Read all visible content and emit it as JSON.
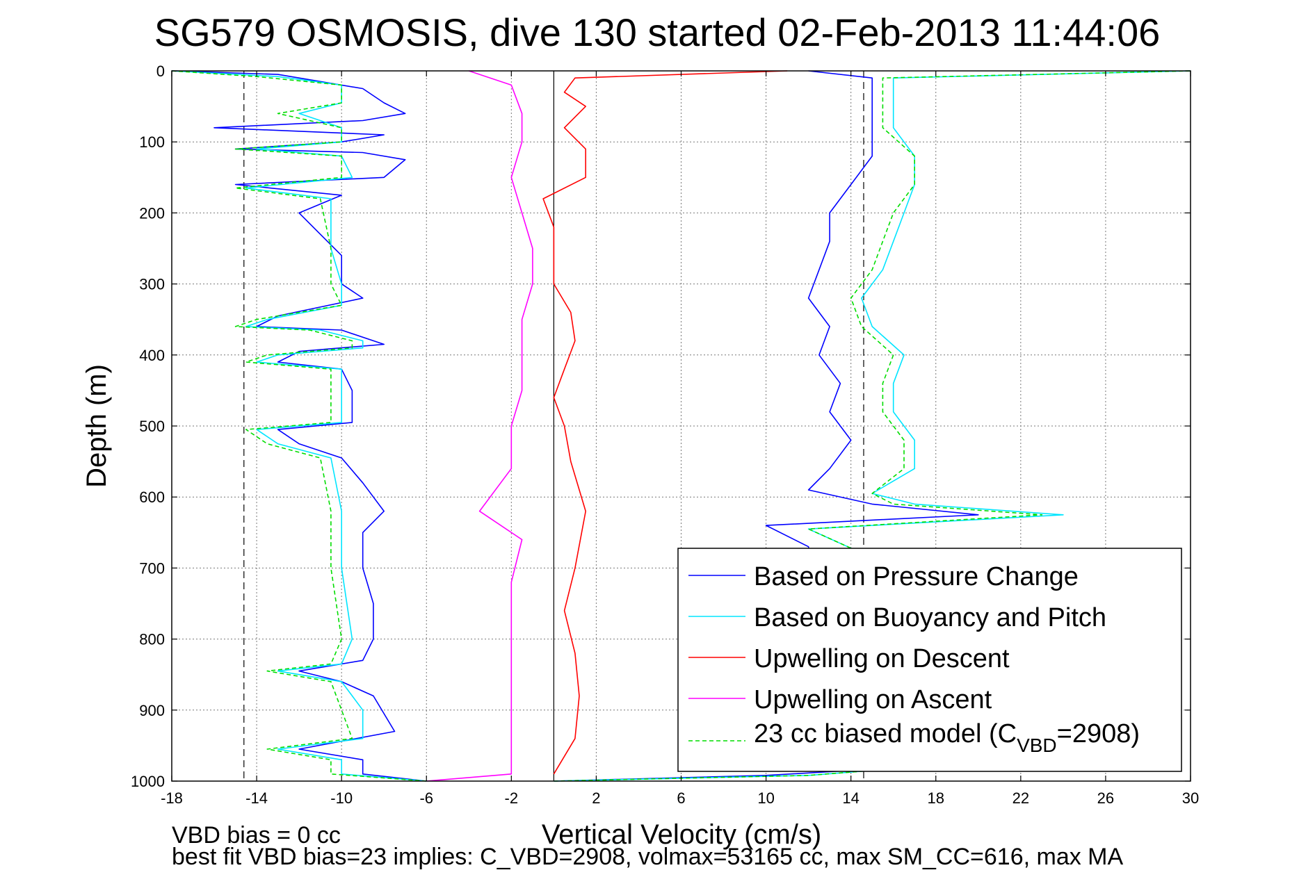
{
  "chart_data": {
    "type": "line",
    "title": "SG579 OSMOSIS, dive 130 started 02-Feb-2013 11:44:06",
    "xlabel": "Vertical Velocity (cm/s)",
    "ylabel": "Depth (m)",
    "xlim": [
      -18,
      30
    ],
    "ylim": [
      0,
      1000
    ],
    "y_reversed": true,
    "grid": true,
    "x_ticks": [
      "-18",
      "-14",
      "-10",
      "-6",
      "-2",
      "2",
      "6",
      "10",
      "14",
      "18",
      "22",
      "26",
      "30"
    ],
    "y_ticks": [
      "0",
      "100",
      "200",
      "300",
      "400",
      "500",
      "600",
      "700",
      "800",
      "900",
      "1000"
    ],
    "legend_position": "bottom-right",
    "legend": {
      "entries": [
        {
          "name": "Based on Pressure Change",
          "color": "#0000ff",
          "style": "solid"
        },
        {
          "name": "Based on Buoyancy and Pitch",
          "color": "#00e5ff",
          "style": "solid"
        },
        {
          "name": "Upwelling on Descent",
          "color": "#ff0000",
          "style": "solid"
        },
        {
          "name": "Upwelling on Ascent",
          "color": "#ff00ff",
          "style": "solid"
        },
        {
          "name_prefix": "23 cc biased model (C",
          "name_sub": "VBD",
          "name_suffix": "=2908)",
          "color": "#00dd00",
          "style": "dashed"
        }
      ]
    },
    "reference_lines": {
      "descent_dashed_x": -14.6,
      "ascent_dashed_x": 14.6,
      "zero_solid_x": 0
    },
    "series": [
      {
        "name": "Based on Pressure Change (descent)",
        "color": "#0000ff",
        "points": [
          {
            "x": -18,
            "y": 0
          },
          {
            "x": -13,
            "y": 5
          },
          {
            "x": -11,
            "y": 15
          },
          {
            "x": -9,
            "y": 25
          },
          {
            "x": -8,
            "y": 45
          },
          {
            "x": -7,
            "y": 60
          },
          {
            "x": -9,
            "y": 70
          },
          {
            "x": -16,
            "y": 80
          },
          {
            "x": -8,
            "y": 90
          },
          {
            "x": -10,
            "y": 100
          },
          {
            "x": -15,
            "y": 110
          },
          {
            "x": -9,
            "y": 115
          },
          {
            "x": -7,
            "y": 125
          },
          {
            "x": -8,
            "y": 150
          },
          {
            "x": -15,
            "y": 160
          },
          {
            "x": -10,
            "y": 175
          },
          {
            "x": -12,
            "y": 200
          },
          {
            "x": -11,
            "y": 230
          },
          {
            "x": -10,
            "y": 260
          },
          {
            "x": -10,
            "y": 300
          },
          {
            "x": -9,
            "y": 320
          },
          {
            "x": -13,
            "y": 345
          },
          {
            "x": -14,
            "y": 360
          },
          {
            "x": -10,
            "y": 365
          },
          {
            "x": -8,
            "y": 385
          },
          {
            "x": -12,
            "y": 395
          },
          {
            "x": -13,
            "y": 410
          },
          {
            "x": -10,
            "y": 420
          },
          {
            "x": -9.5,
            "y": 450
          },
          {
            "x": -9.5,
            "y": 495
          },
          {
            "x": -13,
            "y": 505
          },
          {
            "x": -12,
            "y": 525
          },
          {
            "x": -10,
            "y": 545
          },
          {
            "x": -9,
            "y": 580
          },
          {
            "x": -8,
            "y": 620
          },
          {
            "x": -9,
            "y": 650
          },
          {
            "x": -9,
            "y": 700
          },
          {
            "x": -8.5,
            "y": 750
          },
          {
            "x": -8.5,
            "y": 800
          },
          {
            "x": -9,
            "y": 830
          },
          {
            "x": -12,
            "y": 845
          },
          {
            "x": -10,
            "y": 860
          },
          {
            "x": -8.5,
            "y": 880
          },
          {
            "x": -7.5,
            "y": 930
          },
          {
            "x": -12,
            "y": 955
          },
          {
            "x": -9,
            "y": 970
          },
          {
            "x": -9,
            "y": 990
          },
          {
            "x": -6,
            "y": 1000
          }
        ]
      },
      {
        "name": "Based on Buoyancy and Pitch (descent)",
        "color": "#00e5ff",
        "points": [
          {
            "x": -18,
            "y": 0
          },
          {
            "x": -13,
            "y": 8
          },
          {
            "x": -10,
            "y": 20
          },
          {
            "x": -10,
            "y": 45
          },
          {
            "x": -12,
            "y": 60
          },
          {
            "x": -10,
            "y": 80
          },
          {
            "x": -10,
            "y": 100
          },
          {
            "x": -14,
            "y": 110
          },
          {
            "x": -10,
            "y": 120
          },
          {
            "x": -9.5,
            "y": 150
          },
          {
            "x": -14.5,
            "y": 165
          },
          {
            "x": -10.5,
            "y": 180
          },
          {
            "x": -10.5,
            "y": 250
          },
          {
            "x": -10,
            "y": 300
          },
          {
            "x": -10,
            "y": 330
          },
          {
            "x": -13.5,
            "y": 350
          },
          {
            "x": -14.5,
            "y": 360
          },
          {
            "x": -11,
            "y": 365
          },
          {
            "x": -9,
            "y": 380
          },
          {
            "x": -9,
            "y": 390
          },
          {
            "x": -13,
            "y": 400
          },
          {
            "x": -14,
            "y": 410
          },
          {
            "x": -10,
            "y": 420
          },
          {
            "x": -10,
            "y": 495
          },
          {
            "x": -14,
            "y": 505
          },
          {
            "x": -13,
            "y": 525
          },
          {
            "x": -10.5,
            "y": 545
          },
          {
            "x": -10,
            "y": 620
          },
          {
            "x": -10,
            "y": 700
          },
          {
            "x": -9.5,
            "y": 800
          },
          {
            "x": -10,
            "y": 835
          },
          {
            "x": -13,
            "y": 845
          },
          {
            "x": -10,
            "y": 860
          },
          {
            "x": -9,
            "y": 900
          },
          {
            "x": -9,
            "y": 940
          },
          {
            "x": -13,
            "y": 955
          },
          {
            "x": -10,
            "y": 970
          },
          {
            "x": -10,
            "y": 990
          },
          {
            "x": -6,
            "y": 1000
          }
        ]
      },
      {
        "name": "23 cc biased model (descent)",
        "color": "#00dd00",
        "dashed": true,
        "points": [
          {
            "x": -18,
            "y": 0
          },
          {
            "x": -14,
            "y": 8
          },
          {
            "x": -10,
            "y": 20
          },
          {
            "x": -10,
            "y": 45
          },
          {
            "x": -13,
            "y": 60
          },
          {
            "x": -10,
            "y": 80
          },
          {
            "x": -10,
            "y": 100
          },
          {
            "x": -15,
            "y": 110
          },
          {
            "x": -10,
            "y": 120
          },
          {
            "x": -10,
            "y": 150
          },
          {
            "x": -15,
            "y": 165
          },
          {
            "x": -11,
            "y": 180
          },
          {
            "x": -10.5,
            "y": 250
          },
          {
            "x": -10.5,
            "y": 300
          },
          {
            "x": -10,
            "y": 330
          },
          {
            "x": -14,
            "y": 350
          },
          {
            "x": -15,
            "y": 360
          },
          {
            "x": -11.5,
            "y": 365
          },
          {
            "x": -9.5,
            "y": 380
          },
          {
            "x": -9.5,
            "y": 390
          },
          {
            "x": -13.5,
            "y": 400
          },
          {
            "x": -14.5,
            "y": 410
          },
          {
            "x": -10.5,
            "y": 420
          },
          {
            "x": -10.5,
            "y": 495
          },
          {
            "x": -14.5,
            "y": 505
          },
          {
            "x": -13.5,
            "y": 525
          },
          {
            "x": -11,
            "y": 545
          },
          {
            "x": -10.5,
            "y": 620
          },
          {
            "x": -10.5,
            "y": 700
          },
          {
            "x": -10,
            "y": 800
          },
          {
            "x": -10.5,
            "y": 835
          },
          {
            "x": -13.5,
            "y": 845
          },
          {
            "x": -10.5,
            "y": 860
          },
          {
            "x": -10,
            "y": 900
          },
          {
            "x": -9.5,
            "y": 940
          },
          {
            "x": -13.5,
            "y": 955
          },
          {
            "x": -10.5,
            "y": 970
          },
          {
            "x": -10.5,
            "y": 990
          },
          {
            "x": -6,
            "y": 1000
          }
        ]
      },
      {
        "name": "Based on Pressure Change (ascent)",
        "color": "#0000ff",
        "points": [
          {
            "x": 0,
            "y": 1000
          },
          {
            "x": 10,
            "y": 992
          },
          {
            "x": 14,
            "y": 985
          },
          {
            "x": 12,
            "y": 670
          },
          {
            "x": 10,
            "y": 640
          },
          {
            "x": 20,
            "y": 625
          },
          {
            "x": 15,
            "y": 610
          },
          {
            "x": 12,
            "y": 590
          },
          {
            "x": 13,
            "y": 560
          },
          {
            "x": 14,
            "y": 520
          },
          {
            "x": 13,
            "y": 480
          },
          {
            "x": 13.5,
            "y": 440
          },
          {
            "x": 12.5,
            "y": 400
          },
          {
            "x": 13,
            "y": 360
          },
          {
            "x": 12,
            "y": 320
          },
          {
            "x": 12.5,
            "y": 280
          },
          {
            "x": 13,
            "y": 240
          },
          {
            "x": 13,
            "y": 200
          },
          {
            "x": 14,
            "y": 160
          },
          {
            "x": 15,
            "y": 120
          },
          {
            "x": 15,
            "y": 80
          },
          {
            "x": 15,
            "y": 40
          },
          {
            "x": 15,
            "y": 10
          },
          {
            "x": 12,
            "y": 0
          }
        ]
      },
      {
        "name": "Based on Buoyancy and Pitch (ascent)",
        "color": "#00e5ff",
        "points": [
          {
            "x": 0,
            "y": 1000
          },
          {
            "x": 12,
            "y": 992
          },
          {
            "x": 15,
            "y": 985
          },
          {
            "x": 14,
            "y": 672
          },
          {
            "x": 12,
            "y": 645
          },
          {
            "x": 24,
            "y": 625
          },
          {
            "x": 17,
            "y": 610
          },
          {
            "x": 15,
            "y": 595
          },
          {
            "x": 17,
            "y": 560
          },
          {
            "x": 17,
            "y": 520
          },
          {
            "x": 16,
            "y": 480
          },
          {
            "x": 16,
            "y": 440
          },
          {
            "x": 16.5,
            "y": 400
          },
          {
            "x": 15,
            "y": 360
          },
          {
            "x": 14.5,
            "y": 320
          },
          {
            "x": 15.5,
            "y": 280
          },
          {
            "x": 16,
            "y": 240
          },
          {
            "x": 16.5,
            "y": 200
          },
          {
            "x": 17,
            "y": 160
          },
          {
            "x": 17,
            "y": 120
          },
          {
            "x": 16,
            "y": 80
          },
          {
            "x": 16,
            "y": 40
          },
          {
            "x": 16,
            "y": 10
          },
          {
            "x": 30,
            "y": 0
          }
        ]
      },
      {
        "name": "23 cc biased model (ascent)",
        "color": "#00dd00",
        "dashed": true,
        "points": [
          {
            "x": 0,
            "y": 1000
          },
          {
            "x": 12,
            "y": 992
          },
          {
            "x": 15,
            "y": 985
          },
          {
            "x": 14,
            "y": 672
          },
          {
            "x": 12,
            "y": 645
          },
          {
            "x": 23,
            "y": 625
          },
          {
            "x": 16,
            "y": 610
          },
          {
            "x": 15,
            "y": 595
          },
          {
            "x": 16.5,
            "y": 560
          },
          {
            "x": 16.5,
            "y": 520
          },
          {
            "x": 15.5,
            "y": 480
          },
          {
            "x": 15.5,
            "y": 440
          },
          {
            "x": 16,
            "y": 400
          },
          {
            "x": 14.5,
            "y": 360
          },
          {
            "x": 14,
            "y": 320
          },
          {
            "x": 15,
            "y": 280
          },
          {
            "x": 15.5,
            "y": 240
          },
          {
            "x": 16,
            "y": 200
          },
          {
            "x": 17,
            "y": 160
          },
          {
            "x": 17,
            "y": 120
          },
          {
            "x": 15.5,
            "y": 80
          },
          {
            "x": 15.5,
            "y": 40
          },
          {
            "x": 15.5,
            "y": 10
          },
          {
            "x": 30,
            "y": 0
          }
        ]
      },
      {
        "name": "Upwelling on Descent",
        "color": "#ff0000",
        "points": [
          {
            "x": 11,
            "y": 0
          },
          {
            "x": 1,
            "y": 10
          },
          {
            "x": 0.5,
            "y": 30
          },
          {
            "x": 1.5,
            "y": 50
          },
          {
            "x": 0.5,
            "y": 80
          },
          {
            "x": 1.5,
            "y": 110
          },
          {
            "x": 1.5,
            "y": 150
          },
          {
            "x": -0.5,
            "y": 180
          },
          {
            "x": 0,
            "y": 220
          },
          {
            "x": 0,
            "y": 260
          },
          {
            "x": 0,
            "y": 300
          },
          {
            "x": 0.8,
            "y": 340
          },
          {
            "x": 1,
            "y": 380
          },
          {
            "x": 0.5,
            "y": 420
          },
          {
            "x": 0,
            "y": 460
          },
          {
            "x": 0.5,
            "y": 500
          },
          {
            "x": 0.8,
            "y": 550
          },
          {
            "x": 1.5,
            "y": 620
          },
          {
            "x": 1,
            "y": 700
          },
          {
            "x": 0.5,
            "y": 760
          },
          {
            "x": 1,
            "y": 820
          },
          {
            "x": 1.2,
            "y": 880
          },
          {
            "x": 1,
            "y": 940
          },
          {
            "x": 0,
            "y": 990
          }
        ]
      },
      {
        "name": "Upwelling on Ascent",
        "color": "#ff00ff",
        "points": [
          {
            "x": -4,
            "y": 0
          },
          {
            "x": -2,
            "y": 20
          },
          {
            "x": -1.5,
            "y": 60
          },
          {
            "x": -1.5,
            "y": 100
          },
          {
            "x": -2,
            "y": 150
          },
          {
            "x": -1.5,
            "y": 200
          },
          {
            "x": -1,
            "y": 250
          },
          {
            "x": -1,
            "y": 300
          },
          {
            "x": -1.5,
            "y": 350
          },
          {
            "x": -1.5,
            "y": 400
          },
          {
            "x": -1.5,
            "y": 450
          },
          {
            "x": -2,
            "y": 500
          },
          {
            "x": -2,
            "y": 560
          },
          {
            "x": -3.5,
            "y": 620
          },
          {
            "x": -1.5,
            "y": 660
          },
          {
            "x": -2,
            "y": 720
          },
          {
            "x": -2,
            "y": 800
          },
          {
            "x": -2,
            "y": 870
          },
          {
            "x": -2,
            "y": 940
          },
          {
            "x": -2,
            "y": 990
          },
          {
            "x": -6,
            "y": 1000
          }
        ]
      }
    ]
  },
  "footer": {
    "line1": "VBD bias = 0 cc",
    "line2": "best fit VBD bias=23 implies: C_VBD=2908, volmax=53165 cc, max SM_CC=616, max MA"
  }
}
